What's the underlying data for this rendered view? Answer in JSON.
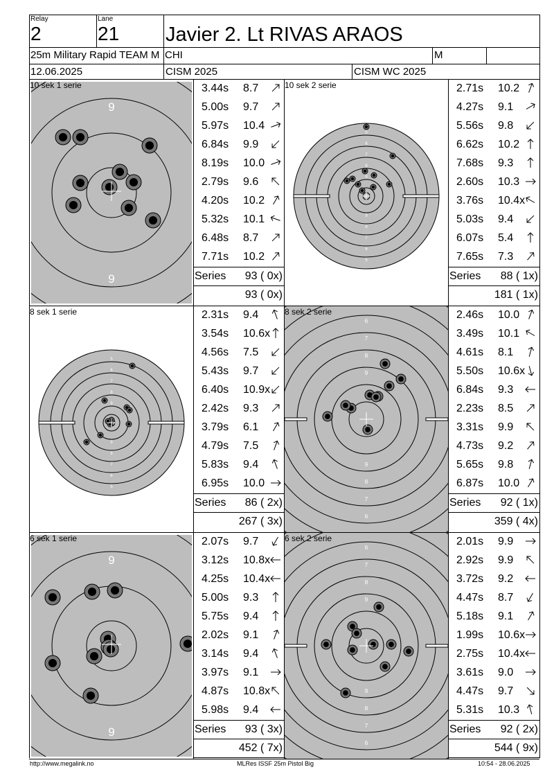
{
  "header": {
    "relay_label": "Relay",
    "relay_value": "2",
    "lane_label": "Lane",
    "lane_value": "21",
    "athlete_name": "Javier 2. Lt RIVAS ARAOS",
    "event": "25m Military Rapid TEAM M",
    "nation": "CHI",
    "gender": "M",
    "date": "12.06.2025",
    "competition": "CISM 2025",
    "championship": "CISM WC 2025"
  },
  "blocks": [
    {
      "left_label": "10 sek 1 serie",
      "left_shots": [
        {
          "time": "3.44s",
          "score": "8.7",
          "dir": 45
        },
        {
          "time": "5.00s",
          "score": "9.7",
          "dir": 45
        },
        {
          "time": "5.97s",
          "score": "10.4",
          "dir": 70
        },
        {
          "time": "6.84s",
          "score": "9.9",
          "dir": 225
        },
        {
          "time": "8.19s",
          "score": "10.0",
          "dir": 70
        },
        {
          "time": "2.79s",
          "score": "9.6",
          "dir": 315
        },
        {
          "time": "4.20s",
          "score": "10.2",
          "dir": 30
        },
        {
          "time": "5.32s",
          "score": "10.1",
          "dir": 290
        },
        {
          "time": "6.48s",
          "score": "8.7",
          "dir": 45
        },
        {
          "time": "7.71s",
          "score": "10.2",
          "dir": 40
        }
      ],
      "left_series_label": "Series",
      "left_series_total": "93 ( 0x)",
      "left_running_total": "93 ( 0x)",
      "right_label": "10 sek 2 serie",
      "right_shots": [
        {
          "time": "2.71s",
          "score": "10.2",
          "dir": 20
        },
        {
          "time": "4.27s",
          "score": "9.1",
          "dir": 60
        },
        {
          "time": "5.56s",
          "score": "9.8",
          "dir": 225
        },
        {
          "time": "6.62s",
          "score": "10.2",
          "dir": 0
        },
        {
          "time": "7.68s",
          "score": "9.3",
          "dir": 0
        },
        {
          "time": "2.60s",
          "score": "10.3",
          "dir": 90
        },
        {
          "time": "3.76s",
          "score": "10.4x",
          "dir": 300
        },
        {
          "time": "5.03s",
          "score": "9.4",
          "dir": 225
        },
        {
          "time": "6.07s",
          "score": "5.4",
          "dir": 0
        },
        {
          "time": "7.65s",
          "score": "7.3",
          "dir": 40
        }
      ],
      "right_series_label": "Series",
      "right_series_total": "88 ( 1x)",
      "right_running_total": "181 ( 1x)"
    },
    {
      "left_label": "8 sek 1 serie",
      "left_shots": [
        {
          "time": "2.31s",
          "score": "9.4",
          "dir": 340
        },
        {
          "time": "3.54s",
          "score": "10.6x",
          "dir": 0
        },
        {
          "time": "4.56s",
          "score": "7.5",
          "dir": 225
        },
        {
          "time": "5.43s",
          "score": "9.7",
          "dir": 225
        },
        {
          "time": "6.40s",
          "score": "10.9x",
          "dir": 225
        },
        {
          "time": "2.42s",
          "score": "9.3",
          "dir": 45
        },
        {
          "time": "3.79s",
          "score": "6.1",
          "dir": 30
        },
        {
          "time": "4.79s",
          "score": "7.5",
          "dir": 20
        },
        {
          "time": "5.83s",
          "score": "9.4",
          "dir": 340
        },
        {
          "time": "6.95s",
          "score": "10.0",
          "dir": 90
        }
      ],
      "left_series_label": "Series",
      "left_series_total": "86 ( 2x)",
      "left_running_total": "267 ( 3x)",
      "right_label": "8 sek 2 serie",
      "right_shots": [
        {
          "time": "2.46s",
          "score": "10.0",
          "dir": 20
        },
        {
          "time": "3.49s",
          "score": "10.1",
          "dir": 300
        },
        {
          "time": "4.61s",
          "score": "8.1",
          "dir": 15
        },
        {
          "time": "5.50s",
          "score": "10.6x",
          "dir": 165
        },
        {
          "time": "6.84s",
          "score": "9.3",
          "dir": 270
        },
        {
          "time": "2.23s",
          "score": "8.5",
          "dir": 45
        },
        {
          "time": "3.31s",
          "score": "9.9",
          "dir": 315
        },
        {
          "time": "4.73s",
          "score": "9.2",
          "dir": 40
        },
        {
          "time": "5.65s",
          "score": "9.8",
          "dir": 15
        },
        {
          "time": "6.87s",
          "score": "10.0",
          "dir": 30
        }
      ],
      "right_series_label": "Series",
      "right_series_total": "92 ( 1x)",
      "right_running_total": "359 ( 4x)"
    },
    {
      "left_label": "6 sek 1 serie",
      "left_shots": [
        {
          "time": "2.07s",
          "score": "9.7",
          "dir": 210
        },
        {
          "time": "3.12s",
          "score": "10.8x",
          "dir": 270
        },
        {
          "time": "4.25s",
          "score": "10.4x",
          "dir": 270
        },
        {
          "time": "5.00s",
          "score": "9.3",
          "dir": 0
        },
        {
          "time": "5.75s",
          "score": "9.4",
          "dir": 0
        },
        {
          "time": "2.02s",
          "score": "9.1",
          "dir": 20
        },
        {
          "time": "3.14s",
          "score": "9.4",
          "dir": 340
        },
        {
          "time": "3.97s",
          "score": "9.1",
          "dir": 90
        },
        {
          "time": "4.87s",
          "score": "10.8x",
          "dir": 315
        },
        {
          "time": "5.98s",
          "score": "9.4",
          "dir": 270
        }
      ],
      "left_series_label": "Series",
      "left_series_total": "93 ( 3x)",
      "left_running_total": "452 ( 7x)",
      "right_label": "6 sek 2 serie",
      "right_shots": [
        {
          "time": "2.01s",
          "score": "9.9",
          "dir": 90
        },
        {
          "time": "2.92s",
          "score": "9.9",
          "dir": 315
        },
        {
          "time": "3.72s",
          "score": "9.2",
          "dir": 270
        },
        {
          "time": "4.47s",
          "score": "8.7",
          "dir": 210
        },
        {
          "time": "5.18s",
          "score": "9.1",
          "dir": 30
        },
        {
          "time": "1.99s",
          "score": "10.6x",
          "dir": 90
        },
        {
          "time": "2.75s",
          "score": "10.4x",
          "dir": 270
        },
        {
          "time": "3.61s",
          "score": "9.0",
          "dir": 90
        },
        {
          "time": "4.47s",
          "score": "9.7",
          "dir": 135
        },
        {
          "time": "5.31s",
          "score": "10.3",
          "dir": 345
        }
      ],
      "right_series_label": "Series",
      "right_series_total": "92 ( 2x)",
      "right_running_total": "544 ( 9x)"
    }
  ],
  "targets": [
    {
      "zoom": "big",
      "ring_labels": [
        "8",
        "9",
        "9",
        "8"
      ],
      "shots": [
        [
          60,
          40
        ],
        [
          -55,
          18
        ],
        [
          -45,
          -14
        ],
        [
          -45,
          -80
        ],
        [
          25,
          22
        ],
        [
          32,
          -15
        ],
        [
          -3,
          -8
        ],
        [
          55,
          -68
        ],
        [
          12,
          -30
        ],
        [
          -70,
          -80
        ]
      ]
    },
    {
      "zoom": "small",
      "ring_labels": [
        "9",
        "8",
        "7",
        "6",
        "5"
      ],
      "shots": [
        [
          0,
          -100
        ],
        [
          -2,
          -36
        ],
        [
          11,
          -30
        ],
        [
          33,
          -17
        ],
        [
          -12,
          -17
        ],
        [
          10,
          -13
        ],
        [
          -6,
          -8
        ],
        [
          -20,
          -25
        ],
        [
          38,
          -58
        ],
        [
          -28,
          -22
        ]
      ]
    },
    {
      "zoom": "small",
      "ring_labels": [
        "9",
        "8",
        "7",
        "6",
        "5"
      ],
      "shots": [
        [
          0,
          -4
        ],
        [
          -2,
          2
        ],
        [
          -10,
          -32
        ],
        [
          22,
          -22
        ],
        [
          -36,
          28
        ],
        [
          25,
          2
        ],
        [
          -16,
          18
        ],
        [
          26,
          -18
        ],
        [
          -5,
          -2
        ],
        [
          30,
          -82
        ]
      ]
    },
    {
      "zoom": "medium",
      "ring_labels": [
        "10",
        "9",
        "8",
        "7",
        "6",
        "5"
      ],
      "shots": [
        [
          5,
          -35
        ],
        [
          33,
          -48
        ],
        [
          -22,
          -16
        ],
        [
          -56,
          -4
        ],
        [
          2,
          15
        ],
        [
          50,
          -58
        ],
        [
          17,
          -33
        ],
        [
          -30,
          -20
        ],
        [
          27,
          -80
        ],
        [
          14,
          -32
        ]
      ]
    },
    {
      "zoom": "big",
      "ring_labels": [
        "8",
        "9",
        "9",
        "8"
      ],
      "shots": [
        [
          -5,
          -10
        ],
        [
          -4,
          2
        ],
        [
          5,
          -80
        ],
        [
          -85,
          -70
        ],
        [
          110,
          -3
        ],
        [
          -28,
          -78
        ],
        [
          -85,
          25
        ],
        [
          -25,
          15
        ],
        [
          -30,
          72
        ],
        [
          -1,
          5
        ]
      ]
    },
    {
      "zoom": "medium",
      "ring_labels": [
        "10",
        "9",
        "8",
        "7",
        "6",
        "5"
      ],
      "shots": [
        [
          10,
          -2
        ],
        [
          -20,
          -28
        ],
        [
          -14,
          -18
        ],
        [
          -58,
          -2
        ],
        [
          -30,
          68
        ],
        [
          36,
          -2
        ],
        [
          27,
          30
        ],
        [
          -20,
          6
        ],
        [
          18,
          -56
        ],
        [
          61,
          8
        ]
      ]
    }
  ],
  "footer": {
    "left": "http://www.megalink.no",
    "center": "MLRes ISSF 25m Pistol Big",
    "right": "10:54 - 28.06.2025"
  }
}
